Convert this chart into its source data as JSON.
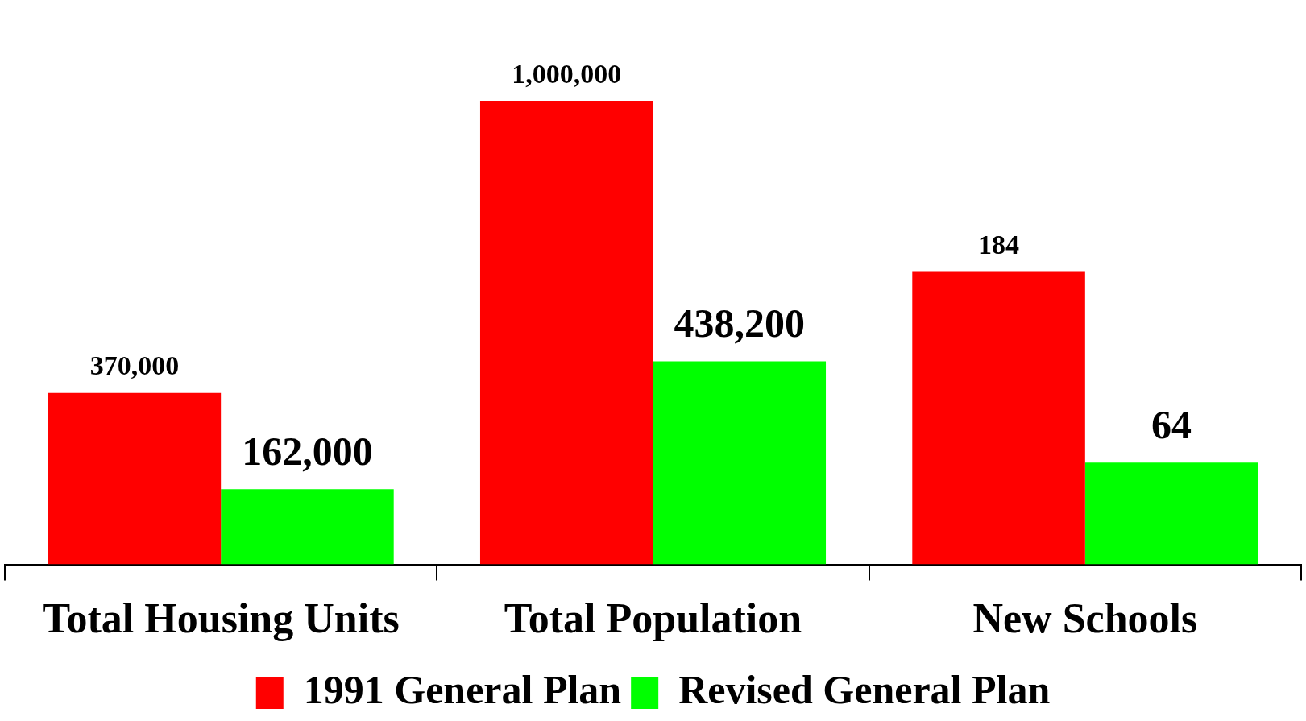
{
  "chart_data": {
    "type": "bar",
    "categories": [
      "Total Housing Units",
      "Total Population",
      "New Schools"
    ],
    "series": [
      {
        "name": "1991 General Plan",
        "color": "#ff0000",
        "values": [
          370000,
          1000000,
          null
        ],
        "value_labels": [
          "370,000",
          "1,000,000",
          null
        ]
      },
      {
        "name": "Revised General Plan",
        "color": "#00ff00",
        "values": [
          162000,
          438200,
          null
        ],
        "value_labels": [
          "162,000",
          "438,200",
          null
        ]
      },
      {
        "color": "#ff0000",
        "axis": "y2",
        "values": [
          null,
          null,
          184
        ],
        "value_labels": [
          null,
          null,
          "184"
        ]
      },
      {
        "color": "#00ff00",
        "axis": "y2",
        "values": [
          null,
          null,
          64
        ],
        "value_labels": [
          null,
          null,
          "64"
        ]
      }
    ],
    "tick_labels": "x",
    "legend": "bottom"
  }
}
